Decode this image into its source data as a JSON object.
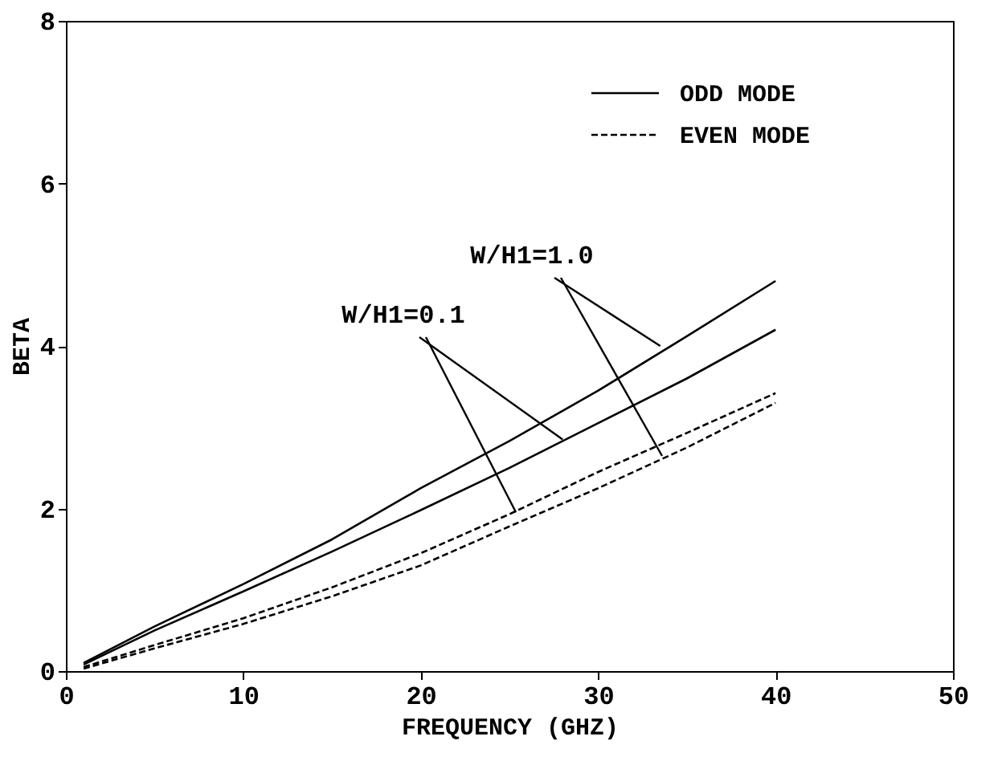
{
  "chart_data": {
    "type": "line",
    "xlabel": "FREQUENCY (GHZ)",
    "ylabel": "BETA",
    "x": [
      1,
      5,
      10,
      15,
      20,
      25,
      30,
      35,
      40
    ],
    "series": [
      {
        "name": "ODD MODE",
        "color": "#000000",
        "line_style": "solid",
        "values": [
          0.1,
          0.55,
          1.07,
          1.62,
          2.25,
          2.83,
          3.45,
          4.12,
          4.8
        ]
      },
      {
        "color": "#000000",
        "line_style": "solid",
        "values": [
          0.08,
          0.5,
          0.98,
          1.47,
          1.98,
          2.5,
          3.05,
          3.6,
          4.2
        ]
      },
      {
        "name": "EVEN MODE",
        "color": "#000000",
        "line_style": "dashed",
        "values": [
          0.05,
          0.32,
          0.65,
          1.03,
          1.45,
          1.93,
          2.45,
          2.93,
          3.42
        ]
      },
      {
        "color": "#000000",
        "line_style": "dashed",
        "values": [
          0.03,
          0.28,
          0.58,
          0.92,
          1.3,
          1.78,
          2.25,
          2.75,
          3.3
        ]
      }
    ],
    "annotations": [
      {
        "text": "W/H1=1.0",
        "x": 33.5,
        "y": 4.0
      },
      {
        "text": "W/H1=0.1",
        "x": 28,
        "y": 2.85
      }
    ],
    "xlim": [
      0,
      50
    ],
    "ylim": [
      0,
      8
    ],
    "xticks": [
      0,
      10,
      20,
      30,
      40,
      50
    ],
    "yticks": [
      0,
      2,
      4,
      6,
      8
    ],
    "grid": false,
    "legend": "top right",
    "marker": "none"
  }
}
